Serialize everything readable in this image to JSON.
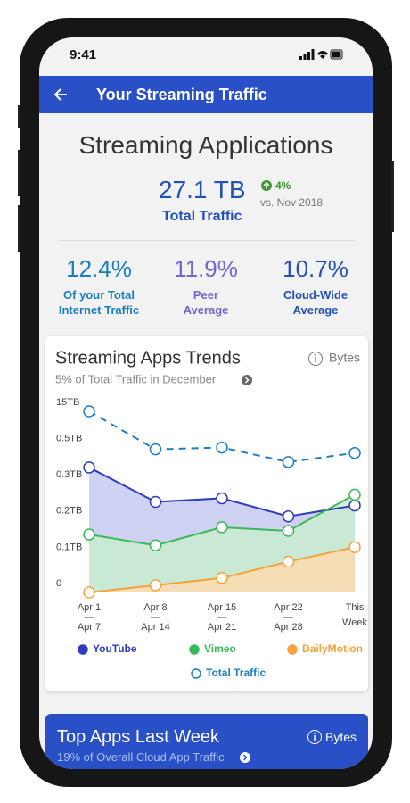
{
  "status_bar": {
    "time": "9:41"
  },
  "header": {
    "title": "Your Streaming Traffic"
  },
  "summary": {
    "title": "Streaming Applications",
    "total": "27.1 TB",
    "total_label": "Total Traffic",
    "change": "4%",
    "change_note": "vs. Nov 2018",
    "stats": [
      {
        "value": "12.4%",
        "label": [
          "Of your Total",
          "Internet Traffic"
        ],
        "color": "#1a7fc0"
      },
      {
        "value": "11.9%",
        "label": [
          "Peer",
          "Average"
        ],
        "color": "#7466cc"
      },
      {
        "value": "10.7%",
        "label": [
          "Cloud-Wide",
          "Average"
        ],
        "color": "#2451b5"
      }
    ]
  },
  "chart_data": {
    "type": "line",
    "title": "Streaming Apps Trends",
    "subtitle": "5% of Total Traffic in December",
    "unit": "Bytes",
    "categories": [
      [
        "Apr 1",
        "—",
        "Apr 7"
      ],
      [
        "Apr 8",
        "—",
        "Apr 14"
      ],
      [
        "Apr 15",
        "—",
        "Apr 21"
      ],
      [
        "Apr 22",
        "—",
        "Apr 28"
      ],
      [
        "This",
        "Week"
      ]
    ],
    "ylim": [
      0,
      15
    ],
    "yticks": [
      0,
      {
        "value": 0.1,
        "label": "0.1TB"
      },
      {
        "value": 0.2,
        "label": "0.2TB"
      },
      {
        "value": 0.3,
        "label": "0.3TB"
      },
      {
        "value": 0.5,
        "label": "0.5TB"
      },
      {
        "value": 15,
        "label": "15TB"
      }
    ],
    "grid": false,
    "series": [
      {
        "name": "YouTube",
        "color": "#2f3dbd",
        "fill_color": "#c7c9f0",
        "values": [
          0.39,
          0.25,
          0.26,
          0.21,
          0.24
        ]
      },
      {
        "name": "Vimeo",
        "color": "#3bb957",
        "fill_color": "#c9edd0",
        "values": [
          0.16,
          0.13,
          0.18,
          0.17,
          0.27
        ]
      },
      {
        "name": "DailyMotion",
        "color": "#f5a23a",
        "fill_color": "#fddab0",
        "values": [
          0,
          0.02,
          0.04,
          0.085,
          0.125
        ]
      },
      {
        "name": "Total Traffic",
        "color": "#1f7fc4",
        "dashed": true,
        "values": [
          15,
          0.49,
          0.51,
          0.42,
          0.47
        ]
      }
    ]
  },
  "bottom_card": {
    "title": "Top Apps Last Week",
    "unit": "Bytes",
    "subtitle": "19% of Overall Cloud App Traffic"
  }
}
